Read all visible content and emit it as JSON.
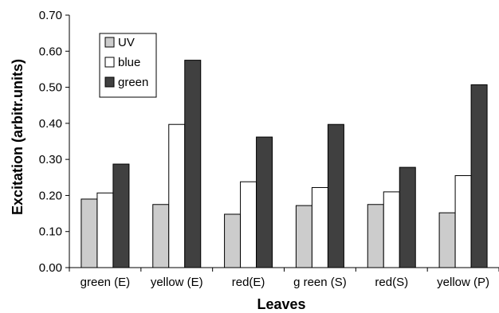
{
  "chart_data": {
    "type": "bar",
    "xlabel": "Leaves",
    "ylabel": "Excitation (arbitr.units)",
    "categories": [
      "green (E)",
      "yellow (E)",
      "red(E)",
      "g reen (S)",
      "red(S)",
      "yellow (P)"
    ],
    "series": [
      {
        "name": "UV",
        "color": "#cccccc",
        "values": [
          0.19,
          0.175,
          0.148,
          0.172,
          0.175,
          0.152
        ]
      },
      {
        "name": "blue",
        "color": "#ffffff",
        "values": [
          0.207,
          0.397,
          0.238,
          0.222,
          0.21,
          0.255
        ]
      },
      {
        "name": "green",
        "color": "#404040",
        "values": [
          0.287,
          0.575,
          0.362,
          0.397,
          0.278,
          0.507
        ]
      }
    ],
    "ylim": [
      0,
      0.7
    ],
    "yticks": [
      "0.00",
      "0.10",
      "0.20",
      "0.30",
      "0.40",
      "0.50",
      "0.60",
      "0.70"
    ],
    "grid": false,
    "legend_position": "top-left"
  }
}
